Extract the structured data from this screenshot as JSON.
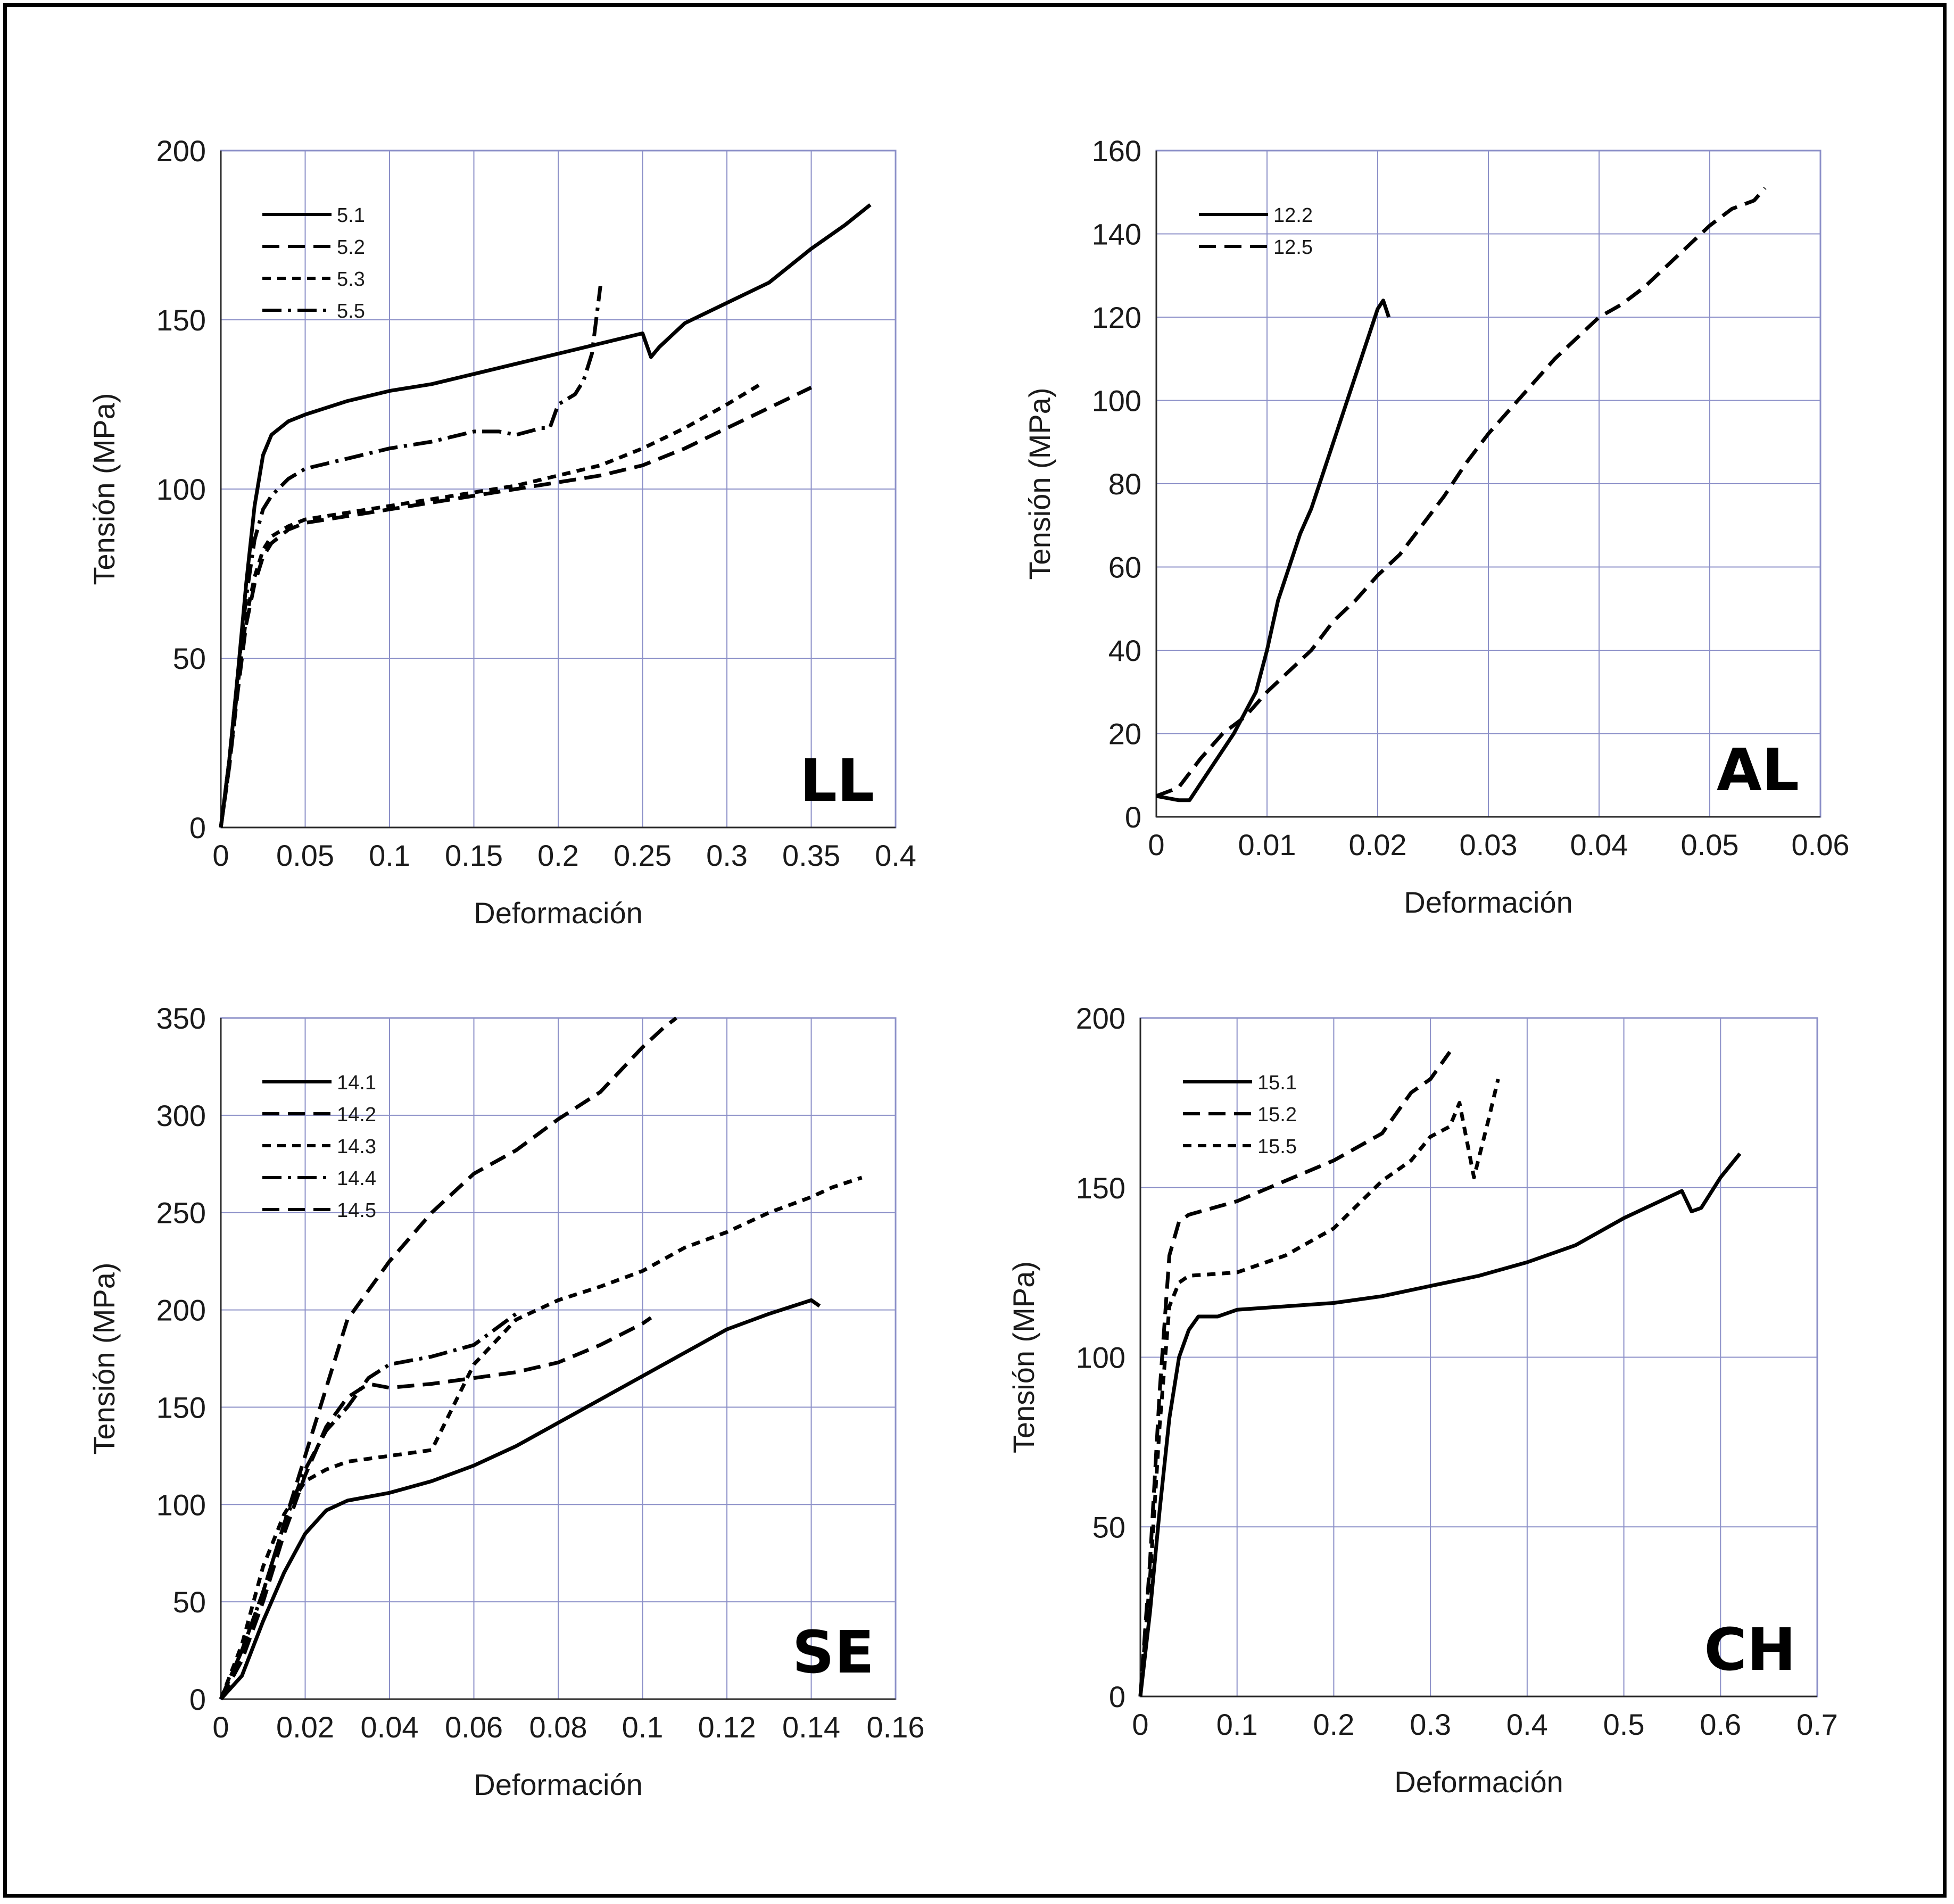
{
  "colors": {
    "grid": "#8c90c8",
    "line": "#000000"
  },
  "chart_data": [
    {
      "type": "line",
      "label": "LL",
      "xlabel": "Deformación",
      "ylabel": "Tensión (MPa)",
      "xlim": [
        0,
        0.4
      ],
      "ylim": [
        0,
        200
      ],
      "xticks": [
        "0",
        "0.05",
        "0.1",
        "0.15",
        "0.2",
        "0.25",
        "0.3",
        "0.35",
        "0.4"
      ],
      "yticks": [
        "0",
        "50",
        "100",
        "150",
        "200"
      ],
      "grid": true,
      "legend": "top-left",
      "series": [
        {
          "name": "5.1",
          "dash": "solid",
          "x": [
            0,
            0.005,
            0.01,
            0.015,
            0.02,
            0.025,
            0.03,
            0.04,
            0.05,
            0.075,
            0.1,
            0.125,
            0.15,
            0.175,
            0.2,
            0.225,
            0.25,
            0.255,
            0.26,
            0.275,
            0.3,
            0.325,
            0.35,
            0.37,
            0.385
          ],
          "y": [
            0,
            20,
            45,
            72,
            95,
            110,
            116,
            120,
            122,
            126,
            129,
            131,
            134,
            137,
            140,
            143,
            146,
            139,
            142,
            149,
            155,
            161,
            171,
            178,
            184
          ]
        },
        {
          "name": "5.2",
          "dash": "long",
          "x": [
            0,
            0.005,
            0.01,
            0.015,
            0.02,
            0.025,
            0.03,
            0.04,
            0.05,
            0.075,
            0.1,
            0.125,
            0.15,
            0.175,
            0.2,
            0.225,
            0.25,
            0.275,
            0.3,
            0.325,
            0.35
          ],
          "y": [
            0,
            18,
            40,
            60,
            72,
            80,
            84,
            88,
            90,
            92,
            94,
            96,
            98,
            100,
            102,
            104,
            107,
            112,
            118,
            124,
            130
          ]
        },
        {
          "name": "5.3",
          "dash": "short",
          "x": [
            0,
            0.005,
            0.01,
            0.015,
            0.02,
            0.025,
            0.03,
            0.04,
            0.05,
            0.075,
            0.1,
            0.125,
            0.15,
            0.175,
            0.2,
            0.225,
            0.25,
            0.275,
            0.3,
            0.32
          ],
          "y": [
            0,
            18,
            42,
            62,
            74,
            82,
            86,
            89,
            91,
            93,
            95,
            97,
            99,
            101,
            104,
            107,
            112,
            118,
            125,
            131
          ]
        },
        {
          "name": "5.5",
          "dash": "dashdot",
          "x": [
            0,
            0.005,
            0.01,
            0.015,
            0.02,
            0.025,
            0.03,
            0.04,
            0.05,
            0.075,
            0.1,
            0.125,
            0.15,
            0.165,
            0.175,
            0.19,
            0.195,
            0.2,
            0.21,
            0.215,
            0.22,
            0.225
          ],
          "y": [
            0,
            20,
            45,
            68,
            85,
            94,
            98,
            103,
            106,
            109,
            112,
            114,
            117,
            117,
            116,
            118,
            118,
            125,
            128,
            132,
            140,
            160
          ]
        }
      ]
    },
    {
      "type": "line",
      "label": "AL",
      "xlabel": "Deformación",
      "ylabel": "Tensión (MPa)",
      "xlim": [
        0,
        0.06
      ],
      "ylim": [
        0,
        160
      ],
      "xticks": [
        "0",
        "0.01",
        "0.02",
        "0.03",
        "0.04",
        "0.05",
        "0.06"
      ],
      "yticks": [
        "0",
        "20",
        "40",
        "60",
        "80",
        "100",
        "120",
        "140",
        "160"
      ],
      "grid": true,
      "legend": "top-left",
      "series": [
        {
          "name": "12.2",
          "dash": "solid",
          "x": [
            0,
            0.002,
            0.003,
            0.005,
            0.007,
            0.009,
            0.01,
            0.011,
            0.012,
            0.013,
            0.014,
            0.015,
            0.016,
            0.017,
            0.018,
            0.019,
            0.02,
            0.0205,
            0.021
          ],
          "y": [
            5,
            4,
            4,
            12,
            20,
            30,
            40,
            52,
            60,
            68,
            74,
            82,
            90,
            98,
            106,
            114,
            122,
            124,
            120
          ]
        },
        {
          "name": "12.5",
          "dash": "long",
          "x": [
            0,
            0.002,
            0.004,
            0.006,
            0.008,
            0.01,
            0.012,
            0.014,
            0.016,
            0.018,
            0.02,
            0.022,
            0.024,
            0.026,
            0.028,
            0.03,
            0.032,
            0.034,
            0.036,
            0.038,
            0.04,
            0.042,
            0.044,
            0.046,
            0.048,
            0.05,
            0.052,
            0.054,
            0.055
          ],
          "y": [
            5,
            7,
            14,
            20,
            24,
            30,
            35,
            40,
            47,
            52,
            58,
            63,
            70,
            77,
            85,
            92,
            98,
            104,
            110,
            115,
            120,
            123,
            127,
            132,
            137,
            142,
            146,
            148,
            151
          ]
        }
      ]
    },
    {
      "type": "line",
      "label": "SE",
      "xlabel": "Deformación",
      "ylabel": "Tensión (MPa)",
      "xlim": [
        0,
        0.16
      ],
      "ylim": [
        0,
        350
      ],
      "xticks": [
        "0",
        "0.02",
        "0.04",
        "0.06",
        "0.08",
        "0.1",
        "0.12",
        "0.14",
        "0.16"
      ],
      "yticks": [
        "0",
        "50",
        "100",
        "150",
        "200",
        "250",
        "300",
        "350"
      ],
      "grid": true,
      "legend": "top-left",
      "series": [
        {
          "name": "14.1",
          "dash": "solid",
          "x": [
            0,
            0.005,
            0.01,
            0.015,
            0.02,
            0.025,
            0.03,
            0.04,
            0.05,
            0.06,
            0.07,
            0.08,
            0.09,
            0.1,
            0.11,
            0.12,
            0.13,
            0.14,
            0.142
          ],
          "y": [
            0,
            12,
            40,
            65,
            85,
            97,
            102,
            106,
            112,
            120,
            130,
            142,
            154,
            166,
            178,
            190,
            198,
            205,
            202
          ]
        },
        {
          "name": "14.2",
          "dash": "long",
          "x": [
            0,
            0.005,
            0.01,
            0.015,
            0.02,
            0.025,
            0.03,
            0.035,
            0.04,
            0.05,
            0.06,
            0.07,
            0.08,
            0.09,
            0.1,
            0.102
          ],
          "y": [
            0,
            20,
            50,
            85,
            115,
            140,
            155,
            162,
            160,
            162,
            165,
            168,
            173,
            182,
            193,
            196
          ]
        },
        {
          "name": "14.3",
          "dash": "short",
          "x": [
            0,
            0.005,
            0.01,
            0.015,
            0.02,
            0.025,
            0.03,
            0.04,
            0.05,
            0.06,
            0.07,
            0.08,
            0.09,
            0.1,
            0.11,
            0.12,
            0.13,
            0.14,
            0.145,
            0.152
          ],
          "y": [
            0,
            28,
            68,
            95,
            112,
            118,
            122,
            125,
            128,
            172,
            195,
            205,
            212,
            220,
            232,
            240,
            250,
            258,
            263,
            268
          ]
        },
        {
          "name": "14.4",
          "dash": "dashdot",
          "x": [
            0,
            0.005,
            0.01,
            0.015,
            0.02,
            0.025,
            0.03,
            0.035,
            0.04,
            0.05,
            0.06,
            0.07
          ],
          "y": [
            0,
            25,
            55,
            90,
            118,
            138,
            150,
            165,
            172,
            176,
            182,
            198
          ]
        },
        {
          "name": "14.5",
          "dash": "long",
          "x": [
            0,
            0.005,
            0.01,
            0.015,
            0.02,
            0.025,
            0.03,
            0.035,
            0.04,
            0.05,
            0.06,
            0.07,
            0.08,
            0.09,
            0.1,
            0.105,
            0.108
          ],
          "y": [
            0,
            25,
            55,
            90,
            125,
            160,
            195,
            210,
            225,
            250,
            270,
            282,
            298,
            312,
            335,
            345,
            350
          ]
        }
      ]
    },
    {
      "type": "line",
      "label": "CH",
      "xlabel": "Deformación",
      "ylabel": "Tensión (MPa)",
      "xlim": [
        0,
        0.7
      ],
      "ylim": [
        0,
        200
      ],
      "xticks": [
        "0",
        "0.1",
        "0.2",
        "0.3",
        "0.4",
        "0.5",
        "0.6",
        "0.7"
      ],
      "yticks": [
        "0",
        "50",
        "100",
        "150",
        "200"
      ],
      "grid": true,
      "legend": "top-left",
      "series": [
        {
          "name": "15.1",
          "dash": "solid",
          "x": [
            0,
            0.01,
            0.02,
            0.03,
            0.04,
            0.05,
            0.06,
            0.08,
            0.1,
            0.15,
            0.2,
            0.25,
            0.3,
            0.35,
            0.4,
            0.45,
            0.5,
            0.53,
            0.56,
            0.57,
            0.58,
            0.6,
            0.62
          ],
          "y": [
            0,
            25,
            55,
            82,
            100,
            108,
            112,
            112,
            114,
            115,
            116,
            118,
            121,
            124,
            128,
            133,
            141,
            145,
            149,
            143,
            144,
            153,
            160
          ]
        },
        {
          "name": "15.2",
          "dash": "long",
          "x": [
            0,
            0.01,
            0.02,
            0.03,
            0.04,
            0.05,
            0.1,
            0.15,
            0.2,
            0.25,
            0.28,
            0.3,
            0.32
          ],
          "y": [
            0,
            40,
            90,
            130,
            140,
            142,
            146,
            152,
            158,
            166,
            178,
            182,
            190
          ]
        },
        {
          "name": "15.5",
          "dash": "short",
          "x": [
            0,
            0.01,
            0.02,
            0.03,
            0.04,
            0.05,
            0.1,
            0.15,
            0.2,
            0.25,
            0.28,
            0.3,
            0.32,
            0.33,
            0.345,
            0.36,
            0.37
          ],
          "y": [
            0,
            35,
            80,
            115,
            122,
            124,
            125,
            130,
            138,
            152,
            158,
            165,
            168,
            175,
            153,
            170,
            182
          ]
        }
      ]
    }
  ]
}
